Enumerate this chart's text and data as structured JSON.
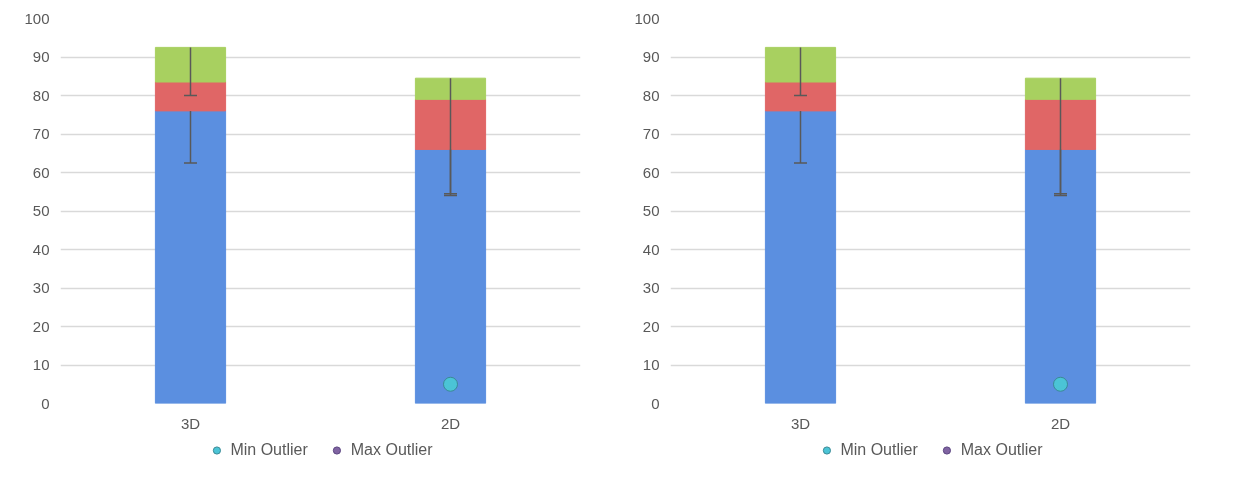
{
  "chart_data": [
    {
      "type": "bar",
      "stacked": true,
      "categories": [
        "3D",
        "2D"
      ],
      "series": [
        {
          "color": "#5b8fe0",
          "values": [
            76,
            66
          ],
          "errors": [
            [
              62.5,
              76
            ],
            [
              54,
              66
            ]
          ]
        },
        {
          "color": "#e06666",
          "values": [
            7.5,
            13
          ]
        },
        {
          "color": "#a8d060",
          "values": [
            9,
            5.5
          ],
          "errors": [
            [
              80,
              92.5
            ],
            [
              54.5,
              84.5
            ]
          ]
        },
        {
          "type": "scatter",
          "name": "Min Outlier",
          "color": "#4bc4d6",
          "values": [
            null,
            5
          ]
        },
        {
          "type": "scatter",
          "name": "Max Outlier",
          "color": "#8064a2",
          "values": [
            null,
            null
          ]
        }
      ],
      "ylim": [
        0,
        100
      ],
      "yticks": [
        0,
        10,
        20,
        30,
        40,
        50,
        60,
        70,
        80,
        90,
        100
      ],
      "grid": "y",
      "legend": "bottom",
      "marker": "circle"
    },
    {
      "type": "bar",
      "stacked": true,
      "categories": [
        "3D",
        "2D"
      ],
      "series": [
        {
          "color": "#5b8fe0",
          "values": [
            76,
            66
          ],
          "errors": [
            [
              62.5,
              76
            ],
            [
              54,
              66
            ]
          ]
        },
        {
          "color": "#e06666",
          "values": [
            7.5,
            13
          ]
        },
        {
          "color": "#a8d060",
          "values": [
            9,
            5.5
          ],
          "errors": [
            [
              80,
              92.5
            ],
            [
              54.5,
              84.5
            ]
          ]
        },
        {
          "type": "scatter",
          "name": "Min Outlier",
          "color": "#4bc4d6",
          "values": [
            null,
            5
          ]
        },
        {
          "type": "scatter",
          "name": "Max Outlier",
          "color": "#8064a2",
          "values": [
            null,
            null
          ]
        }
      ],
      "ylim": [
        0,
        100
      ],
      "yticks": [
        0,
        10,
        20,
        30,
        40,
        50,
        60,
        70,
        80,
        90,
        100
      ],
      "grid": "y",
      "legend": "bottom",
      "marker": "circle"
    }
  ]
}
